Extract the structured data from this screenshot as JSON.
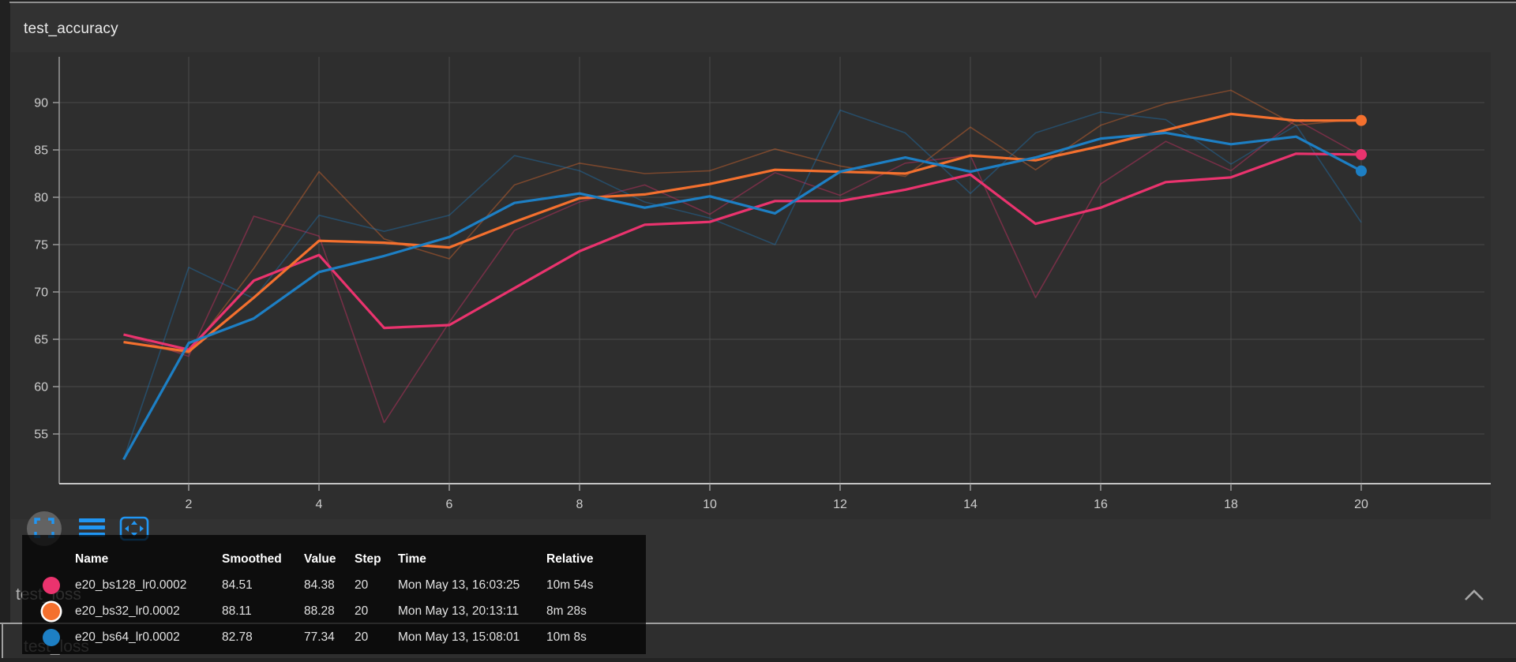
{
  "card": {
    "title": "test_accuracy",
    "footer_icons": [
      {
        "name": "fullscreen-icon",
        "hovered": true
      },
      {
        "name": "data-table-toggle-icon",
        "hovered": false
      },
      {
        "name": "fit-domain-icon",
        "hovered": false
      }
    ],
    "icon_color": "#2196f3"
  },
  "colors": {
    "run_pink": "#ea336e",
    "run_orange": "#f4702e",
    "run_blue": "#1d7fc4",
    "gridline": "#4a4a4a",
    "axis": "#9a9a9a",
    "axis_baseline": "#c4c4c4",
    "tick_label": "#cdcdcd"
  },
  "chart_data": {
    "type": "line",
    "title": "test_accuracy",
    "xlabel": "",
    "ylabel": "",
    "x": [
      1,
      2,
      3,
      4,
      5,
      6,
      7,
      8,
      9,
      10,
      11,
      12,
      13,
      14,
      15,
      16,
      17,
      18,
      19,
      20
    ],
    "x_ticks": [
      2,
      4,
      6,
      8,
      10,
      12,
      14,
      16,
      18,
      20
    ],
    "y_ticks": [
      55,
      60,
      65,
      70,
      75,
      80,
      85,
      90
    ],
    "xlim": [
      0,
      22
    ],
    "ylim": [
      49.75,
      94.8
    ],
    "grid": true,
    "legend_position": "tooltip-bottom-left",
    "series": [
      {
        "name": "e20_bs128_lr0.0002",
        "variant": "raw",
        "color": "#ea336e",
        "opacity": 0.38,
        "width": 1.6,
        "values": [
          65.5,
          63.2,
          78.0,
          75.9,
          56.2,
          66.8,
          76.5,
          79.5,
          81.3,
          78.2,
          82.6,
          80.2,
          83.6,
          84.4,
          69.4,
          81.4,
          85.9,
          82.8,
          88.2,
          84.38
        ]
      },
      {
        "name": "e20_bs32_lr0.0002",
        "variant": "raw",
        "color": "#f4702e",
        "opacity": 0.38,
        "width": 1.6,
        "values": [
          64.7,
          63.5,
          72.5,
          82.7,
          75.6,
          73.5,
          81.3,
          83.6,
          82.5,
          82.8,
          85.1,
          83.3,
          82.2,
          87.4,
          82.9,
          87.6,
          89.9,
          91.3,
          87.6,
          88.28
        ]
      },
      {
        "name": "e20_bs64_lr0.0002",
        "variant": "raw",
        "color": "#1d7fc4",
        "opacity": 0.38,
        "width": 1.6,
        "values": [
          52.3,
          72.6,
          69.3,
          78.1,
          76.4,
          78.1,
          84.4,
          82.8,
          79.5,
          77.8,
          75.0,
          89.2,
          86.8,
          80.4,
          86.8,
          89.0,
          88.2,
          83.5,
          87.6,
          77.34
        ]
      },
      {
        "name": "e20_bs128_lr0.0002",
        "variant": "smoothed",
        "color": "#ea336e",
        "opacity": 1,
        "width": 3.2,
        "end_dot": true,
        "values": [
          65.5,
          63.9,
          71.2,
          73.9,
          66.2,
          66.5,
          70.4,
          74.3,
          77.1,
          77.4,
          79.6,
          79.6,
          80.8,
          82.4,
          77.2,
          78.9,
          81.6,
          82.1,
          84.6,
          84.51
        ]
      },
      {
        "name": "e20_bs32_lr0.0002",
        "variant": "smoothed",
        "color": "#f4702e",
        "opacity": 1,
        "width": 3.2,
        "end_dot": true,
        "values": [
          64.7,
          63.7,
          69.4,
          75.4,
          75.2,
          74.7,
          77.4,
          79.9,
          80.3,
          81.4,
          82.9,
          82.7,
          82.5,
          84.4,
          83.9,
          85.4,
          87.1,
          88.8,
          88.1,
          88.11
        ]
      },
      {
        "name": "e20_bs64_lr0.0002",
        "variant": "smoothed",
        "color": "#1d7fc4",
        "opacity": 1,
        "width": 3.2,
        "end_dot": true,
        "values": [
          52.3,
          64.6,
          67.2,
          72.1,
          73.8,
          75.8,
          79.4,
          80.4,
          78.9,
          80.1,
          78.3,
          82.7,
          84.2,
          82.7,
          84.2,
          86.2,
          86.8,
          85.6,
          86.4,
          82.78
        ]
      }
    ]
  },
  "tooltip": {
    "headers": [
      "Name",
      "Smoothed",
      "Value",
      "Step",
      "Time",
      "Relative"
    ],
    "rows": [
      {
        "color": "#ea336e",
        "highlighted": false,
        "name": "e20_bs128_lr0.0002",
        "smoothed": "84.51",
        "value": "84.38",
        "step": "20",
        "time": "Mon May 13, 16:03:25",
        "relative": "10m 54s"
      },
      {
        "color": "#f4702e",
        "highlighted": true,
        "name": "e20_bs32_lr0.0002",
        "smoothed": "88.11",
        "value": "88.28",
        "step": "20",
        "time": "Mon May 13, 20:13:11",
        "relative": "8m 28s"
      },
      {
        "color": "#1d7fc4",
        "highlighted": false,
        "name": "e20_bs64_lr0.0002",
        "smoothed": "82.78",
        "value": "77.34",
        "step": "20",
        "time": "Mon May 13, 15:08:01",
        "relative": "10m 8s"
      }
    ]
  },
  "sections": [
    {
      "title": "test_loss",
      "collapsed": false,
      "chevron": "up"
    },
    {
      "title": "test_loss"
    }
  ]
}
